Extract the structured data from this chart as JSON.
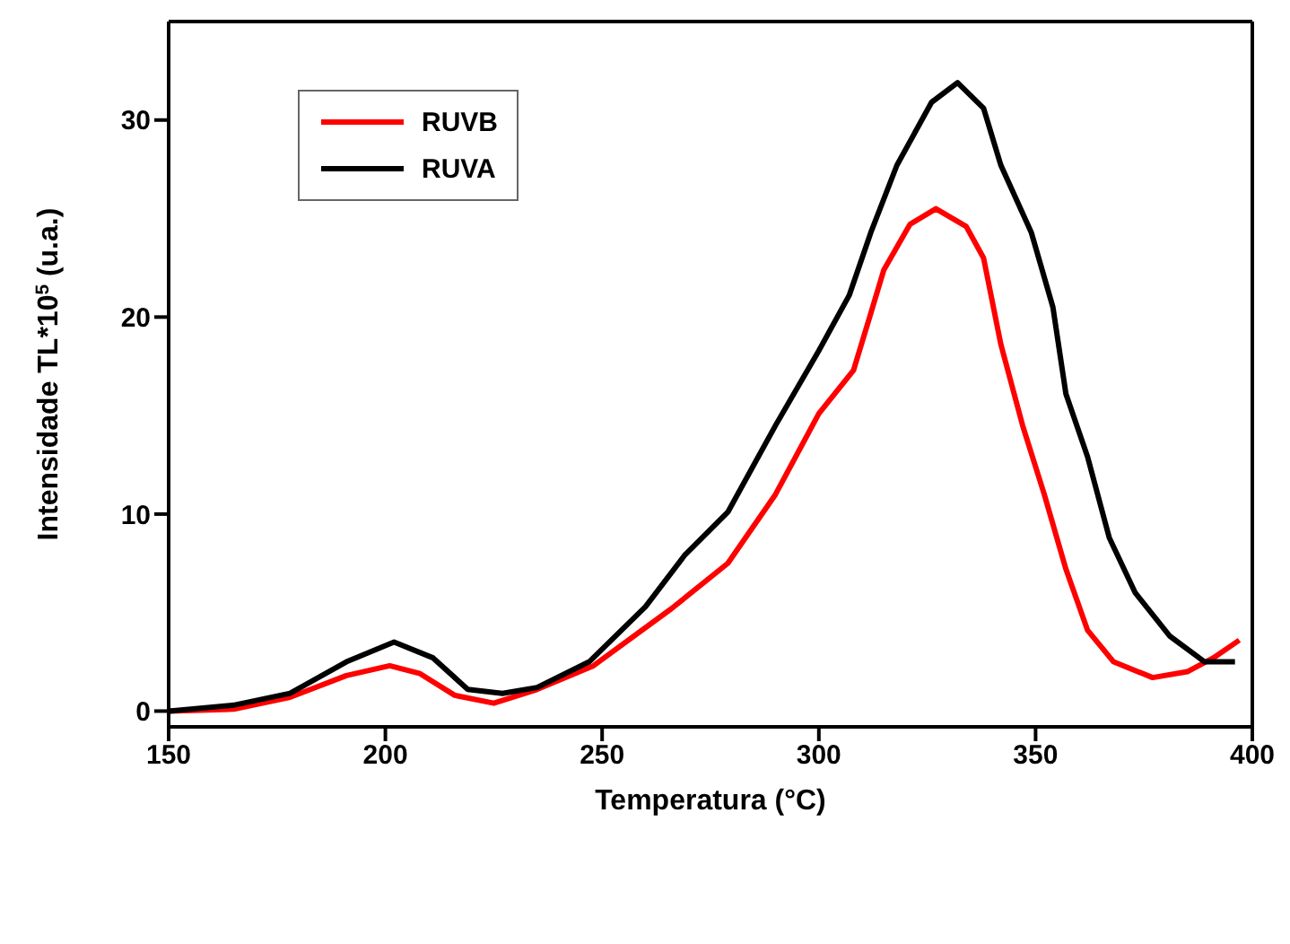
{
  "chart_data": {
    "type": "line",
    "xlabel": "Temperatura (°C)",
    "ylabel": "Intensidade TL*10$^{5}$ (u.a.)",
    "xlim": [
      150,
      400
    ],
    "xticks": [
      150,
      200,
      250,
      300,
      350,
      400
    ],
    "ylim": [
      -0.8,
      35
    ],
    "yticks": [
      0,
      10,
      20,
      30
    ],
    "legend": "top left",
    "grid": false,
    "marker": "none",
    "line_style": "solid",
    "series": [
      {
        "name": "RUVB",
        "color": "#ff0000",
        "x": [
          150,
          165,
          178,
          191,
          201,
          208,
          216,
          225,
          235,
          248,
          266,
          279,
          290,
          300,
          308,
          312,
          315,
          321,
          327,
          334,
          338,
          342,
          347,
          352,
          357,
          362,
          368,
          377,
          385,
          391,
          397
        ],
        "values": [
          0,
          0.1,
          0.7,
          1.8,
          2.3,
          1.9,
          0.8,
          0.4,
          1.1,
          2.3,
          5.2,
          7.5,
          11,
          15.1,
          17.3,
          20.2,
          22.4,
          24.7,
          25.5,
          24.6,
          23,
          18.6,
          14.5,
          11,
          7.2,
          4.1,
          2.5,
          1.7,
          2,
          2.7,
          3.6
        ]
      },
      {
        "name": "RUVA",
        "color": "#000000",
        "x": [
          150,
          165,
          178,
          191,
          202,
          211,
          219,
          227,
          235,
          247,
          260,
          269,
          279,
          290,
          300,
          307,
          312,
          318,
          326,
          332,
          338,
          342,
          349,
          354,
          357,
          362,
          367,
          373,
          381,
          389,
          396
        ],
        "values": [
          0,
          0.3,
          0.9,
          2.5,
          3.5,
          2.7,
          1.1,
          0.9,
          1.2,
          2.5,
          5.3,
          7.9,
          10.1,
          14.5,
          18.3,
          21.1,
          24.3,
          27.7,
          30.9,
          31.9,
          30.6,
          27.7,
          24.3,
          20.5,
          16.1,
          12.9,
          8.8,
          6,
          3.8,
          2.5,
          2.5
        ]
      }
    ]
  }
}
